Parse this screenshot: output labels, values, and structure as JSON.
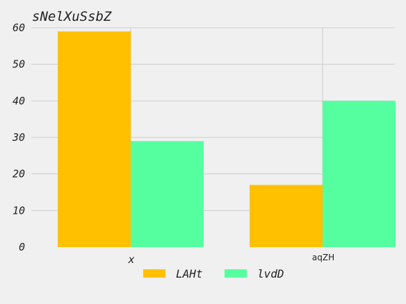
{
  "chart_data": {
    "type": "bar",
    "title": "sNelXuSsbZ",
    "categories": [
      "x",
      "aqZH"
    ],
    "series": [
      {
        "name": "LAHt",
        "values": [
          59,
          17
        ],
        "color": "#ffc000"
      },
      {
        "name": "lvdD",
        "values": [
          29,
          40
        ],
        "color": "#55ffa0"
      }
    ],
    "ylim": [
      0,
      60
    ],
    "yticks": [
      0,
      10,
      20,
      30,
      40,
      50,
      60
    ],
    "grid": true,
    "legend_position": "bottom"
  }
}
